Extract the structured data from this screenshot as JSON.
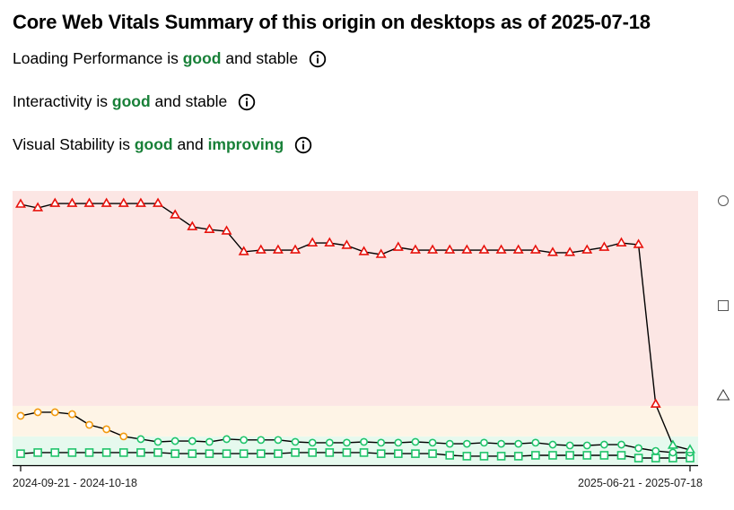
{
  "title": "Core Web Vitals Summary of this origin on desktops as of 2025-07-18",
  "metrics": [
    {
      "parts": [
        {
          "text": "Loading Performance is ",
          "style": "plain"
        },
        {
          "text": "good",
          "style": "good"
        },
        {
          "text": " and stable",
          "style": "plain"
        }
      ],
      "icon": "info-icon"
    },
    {
      "parts": [
        {
          "text": "Interactivity is ",
          "style": "plain"
        },
        {
          "text": "good",
          "style": "good"
        },
        {
          "text": " and stable",
          "style": "plain"
        }
      ],
      "icon": "info-icon"
    },
    {
      "parts": [
        {
          "text": "Visual Stability is ",
          "style": "plain"
        },
        {
          "text": "good",
          "style": "good"
        },
        {
          "text": " and ",
          "style": "plain"
        },
        {
          "text": "improving",
          "style": "good"
        }
      ],
      "icon": "info-icon"
    }
  ],
  "colors": {
    "good_text": "#188038",
    "band_poor": "#fce6e4",
    "band_ni": "#fef4e6",
    "band_good": "#e6f9ee",
    "marker_poor": "#e8120c",
    "marker_ni": "#f29a0e",
    "marker_good": "#1fc46a",
    "line": "#000000"
  },
  "chart_data": {
    "type": "line",
    "title": "",
    "xlabel": "",
    "ylabel": "",
    "ylim": [
      0,
      100
    ],
    "bands": [
      {
        "name": "good",
        "from": 0,
        "to": 10.5
      },
      {
        "name": "needs-improvement",
        "from": 10.5,
        "to": 21.6
      },
      {
        "name": "poor",
        "from": 21.6,
        "to": 100
      }
    ],
    "x_tick_labels": [
      "2024-09-21 - 2024-10-18",
      "2025-06-21 - 2025-07-18"
    ],
    "x_tick_indices": [
      0,
      39
    ],
    "legend": [
      {
        "marker": "circle",
        "placement": "right"
      },
      {
        "marker": "square",
        "placement": "right"
      },
      {
        "marker": "triangle",
        "placement": "right"
      }
    ],
    "series": [
      {
        "name": "circle",
        "marker": "circle",
        "values": [
          18.0,
          19.3,
          19.3,
          18.6,
          14.7,
          13.1,
          10.5,
          9.5,
          8.5,
          8.8,
          8.8,
          8.5,
          9.5,
          9.2,
          9.2,
          9.2,
          8.5,
          8.2,
          8.2,
          8.2,
          8.5,
          8.2,
          8.2,
          8.5,
          8.2,
          7.8,
          7.8,
          8.2,
          7.8,
          7.8,
          8.2,
          7.5,
          7.2,
          7.2,
          7.5,
          7.5,
          6.2,
          5.2,
          4.6,
          4.6
        ]
      },
      {
        "name": "square",
        "marker": "square",
        "values": [
          4.2,
          4.6,
          4.6,
          4.6,
          4.6,
          4.6,
          4.6,
          4.6,
          4.6,
          4.2,
          4.2,
          4.2,
          4.2,
          4.2,
          4.2,
          4.2,
          4.6,
          4.6,
          4.6,
          4.6,
          4.6,
          4.2,
          4.2,
          4.2,
          4.2,
          3.6,
          3.3,
          3.3,
          3.3,
          3.3,
          3.6,
          3.6,
          3.6,
          3.6,
          3.6,
          3.6,
          2.6,
          2.6,
          2.6,
          2.6
        ]
      },
      {
        "name": "triangle",
        "marker": "triangle",
        "values": [
          95.1,
          93.8,
          95.4,
          95.4,
          95.4,
          95.4,
          95.4,
          95.4,
          95.4,
          91.2,
          86.9,
          85.9,
          85.3,
          77.8,
          78.4,
          78.4,
          78.4,
          81.0,
          81.0,
          80.1,
          77.8,
          76.8,
          79.4,
          78.4,
          78.4,
          78.4,
          78.4,
          78.4,
          78.4,
          78.4,
          78.4,
          77.5,
          77.5,
          78.4,
          79.4,
          81.0,
          80.4,
          22.2,
          7.2,
          5.6
        ]
      }
    ]
  }
}
